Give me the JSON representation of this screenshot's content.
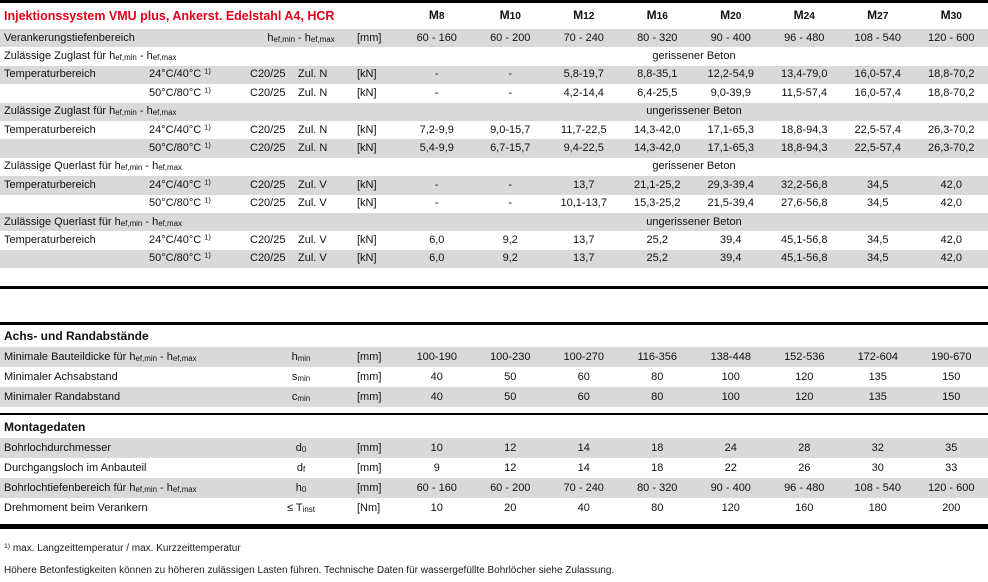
{
  "page": {
    "title": "Injektionssystem  VMU plus, Ankerst. Edelstahl A4, HCR",
    "sizes": [
      "M8",
      "M10",
      "M12",
      "M16",
      "M20",
      "M24",
      "M27",
      "M30"
    ],
    "colors": {
      "accent_red": "#e2001a",
      "row_shade": "#d9d9d9",
      "rule_black": "#000000"
    },
    "load_table": {
      "rows": [
        {
          "type": "data",
          "shade": "gray",
          "label": "Verankerungstiefenbereich",
          "symbol": "h_{ef,min} - h_{ef,max}",
          "unit": "[mm]",
          "values": [
            "60 - 160",
            "60 - 200",
            "70 - 240",
            "80 - 320",
            "90 - 400",
            "96 - 480",
            "108 - 540",
            "120 - 600"
          ]
        },
        {
          "type": "span",
          "shade": "white",
          "label": "Zulässige Zuglast für h_{ef,min} - h_{ef,max}",
          "span_text": "gerissener Beton"
        },
        {
          "type": "temp",
          "shade": "gray",
          "label": "Temperaturbereich",
          "temp": "24°C/40°C ^{1)}",
          "concrete": "C20/25",
          "load": "Zul. N",
          "unit": "[kN]",
          "values": [
            "-",
            "-",
            "5,8-19,7",
            "8,8-35,1",
            "12,2-54,9",
            "13,4-79,0",
            "16,0-57,4",
            "18,8-70,2"
          ]
        },
        {
          "type": "temp",
          "shade": "white",
          "label": "",
          "temp": "50°C/80°C ^{1)}",
          "concrete": "C20/25",
          "load": "Zul. N",
          "unit": "[kN]",
          "values": [
            "-",
            "-",
            "4,2-14,4",
            "6,4-25,5",
            "9,0-39,9",
            "11,5-57,4",
            "16,0-57,4",
            "18,8-70,2"
          ]
        },
        {
          "type": "span",
          "shade": "gray",
          "label": "Zulässige Zuglast für h_{ef,min} - h_{ef,max}",
          "span_text": "ungerissener Beton"
        },
        {
          "type": "temp",
          "shade": "white",
          "label": "Temperaturbereich",
          "temp": "24°C/40°C ^{1)}",
          "concrete": "C20/25",
          "load": "Zul. N",
          "unit": "[kN]",
          "values": [
            "7,2-9,9",
            "9,0-15,7",
            "11,7-22,5",
            "14,3-42,0",
            "17,1-65,3",
            "18,8-94,3",
            "22,5-57,4",
            "26,3-70,2"
          ]
        },
        {
          "type": "temp",
          "shade": "gray",
          "label": "",
          "temp": "50°C/80°C ^{1)}",
          "concrete": "C20/25",
          "load": "Zul. N",
          "unit": "[kN]",
          "values": [
            "5,4-9,9",
            "6,7-15,7",
            "9,4-22,5",
            "14,3-42,0",
            "17,1-65,3",
            "18,8-94,3",
            "22,5-57,4",
            "26,3-70,2"
          ]
        },
        {
          "type": "span",
          "shade": "white",
          "label": "Zulässige Querlast für h_{ef,min} - h_{ef,max}",
          "span_text": "gerissener Beton"
        },
        {
          "type": "temp",
          "shade": "gray",
          "label": "Temperaturbereich",
          "temp": "24°C/40°C ^{1)}",
          "concrete": "C20/25",
          "load": "Zul. V",
          "unit": "[kN]",
          "values": [
            "-",
            "-",
            "13,7",
            "21,1-25,2",
            "29,3-39,4",
            "32,2-56,8",
            "34,5",
            "42,0"
          ]
        },
        {
          "type": "temp",
          "shade": "white",
          "label": "",
          "temp": "50°C/80°C ^{1)}",
          "concrete": "C20/25",
          "load": "Zul. V",
          "unit": "[kN]",
          "values": [
            "-",
            "-",
            "10,1-13,7",
            "15,3-25,2",
            "21,5-39,4",
            "27,6-56,8",
            "34,5",
            "42,0"
          ]
        },
        {
          "type": "span",
          "shade": "gray",
          "label": "Zulässige Querlast für h_{ef,min} - h_{ef,max}",
          "span_text": "ungerissener Beton"
        },
        {
          "type": "temp",
          "shade": "white",
          "label": "Temperaturbereich",
          "temp": "24°C/40°C ^{1)}",
          "concrete": "C20/25",
          "load": "Zul. V",
          "unit": "[kN]",
          "values": [
            "6,0",
            "9,2",
            "13,7",
            "25,2",
            "39,4",
            "45,1-56,8",
            "34,5",
            "42,0"
          ]
        },
        {
          "type": "temp",
          "shade": "gray",
          "label": "",
          "temp": "50°C/80°C ^{1)}",
          "concrete": "C20/25",
          "load": "Zul. V",
          "unit": "[kN]",
          "values": [
            "6,0",
            "9,2",
            "13,7",
            "25,2",
            "39,4",
            "45,1-56,8",
            "34,5",
            "42,0"
          ]
        }
      ]
    },
    "dimension_table": {
      "rows": [
        {
          "type": "section",
          "label": "Achs- und Randabstände"
        },
        {
          "type": "data",
          "shade": "gray",
          "label": "Minimale Bauteildicke für h_{ef,min} - h_{ef,max}",
          "symbol": "h_{min}",
          "unit": "[mm]",
          "values": [
            "100-190",
            "100-230",
            "100-270",
            "116-356",
            "138-448",
            "152-536",
            "172-604",
            "190-670"
          ]
        },
        {
          "type": "data",
          "shade": "white",
          "label": "Minimaler Achsabstand",
          "symbol": "s_{min}",
          "unit": "[mm]",
          "values": [
            "40",
            "50",
            "60",
            "80",
            "100",
            "120",
            "135",
            "150"
          ]
        },
        {
          "type": "data",
          "shade": "gray",
          "label": "Minimaler Randabstand",
          "symbol": "c_{min}",
          "unit": "[mm]",
          "values": [
            "40",
            "50",
            "60",
            "80",
            "100",
            "120",
            "135",
            "150"
          ]
        },
        {
          "type": "section",
          "label": "Montagedaten"
        },
        {
          "type": "data",
          "shade": "gray",
          "label": "Bohrlochdurchmesser",
          "symbol": "d_{0}",
          "unit": "[mm]",
          "values": [
            "10",
            "12",
            "14",
            "18",
            "24",
            "28",
            "32",
            "35"
          ]
        },
        {
          "type": "data",
          "shade": "white",
          "label": "Durchgangsloch im Anbauteil",
          "symbol": "d_{f}",
          "unit": "[mm]",
          "values": [
            "9",
            "12",
            "14",
            "18",
            "22",
            "26",
            "30",
            "33"
          ]
        },
        {
          "type": "data",
          "shade": "gray",
          "label": "Bohrlochtiefenbereich für h_{ef,min} - h_{ef,max}",
          "symbol": "h_{0}",
          "unit": "[mm]",
          "values": [
            "60 - 160",
            "60 - 200",
            "70 - 240",
            "80 - 320",
            "90 - 400",
            "96 - 480",
            "108 - 540",
            "120 - 600"
          ]
        },
        {
          "type": "data",
          "shade": "white",
          "label": "Drehmoment beim Verankern",
          "symbol": "≤ T_{inst}",
          "unit": "[Nm]",
          "values": [
            "10",
            "20",
            "40",
            "80",
            "120",
            "160",
            "180",
            "200"
          ]
        }
      ]
    },
    "footnotes": [
      "^{1)} max. Langzeittemperatur / max. Kurzzeittemperatur",
      "Höhere Betonfestigkeiten können zu höheren zulässigen Lasten führen. Technische Daten für wassergefüllte Bohrlöcher siehe Zulassung."
    ]
  }
}
